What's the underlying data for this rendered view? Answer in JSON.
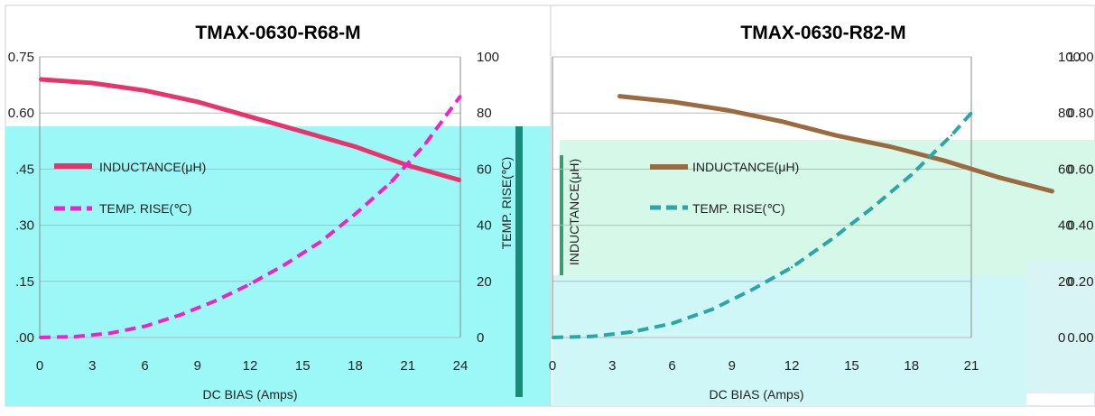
{
  "chart_data": [
    {
      "type": "line",
      "title": "TMAX-0630-R68-M",
      "xlabel": "DC BIAS  (Amps)",
      "ylabel": "INDUCTANCE(μH)",
      "ylabel_right": "TEMP. RISE(℃)",
      "x_ticks": [
        "0",
        "3",
        "6",
        "9",
        "12",
        "15",
        "18",
        "21",
        "24"
      ],
      "y_ticks": [
        ".00",
        ".15",
        ".30",
        ".45",
        "0.60",
        "0.75"
      ],
      "y2_ticks": [
        "0",
        "20",
        "40",
        "60",
        "80",
        "100"
      ],
      "xlim": [
        0,
        24
      ],
      "ylim": [
        0,
        0.75
      ],
      "y2lim": [
        0,
        100
      ],
      "legend": [
        "INDUCTANCE(μH)",
        "TEMP. RISE(℃)"
      ],
      "series": [
        {
          "name": "INDUCTANCE(μH)",
          "axis": "left",
          "color": "#c0504d",
          "x": [
            0,
            3,
            6,
            9,
            12,
            15,
            18,
            21,
            24
          ],
          "values": [
            0.69,
            0.68,
            0.66,
            0.63,
            0.59,
            0.55,
            0.51,
            0.46,
            0.42
          ]
        },
        {
          "name": "TEMP. RISE(℃)",
          "axis": "right",
          "color": "#4f81bd",
          "x": [
            0,
            2,
            4,
            6,
            8,
            10,
            12,
            14,
            16,
            18,
            20,
            22,
            24
          ],
          "values": [
            0,
            0.3,
            1.5,
            4,
            8,
            13,
            19,
            26,
            34,
            44,
            55,
            69,
            86
          ]
        }
      ]
    },
    {
      "type": "line",
      "title": "TMAX-0630-R82-M",
      "xlabel": "DC BIAS  (Amps)",
      "ylabel": "INDUCTANCE(μH)",
      "ylabel_right": "TEMP. RISE(℃)",
      "x_ticks": [
        "0",
        "3",
        "6",
        "9",
        "12",
        "15",
        "18",
        "21"
      ],
      "y_ticks": [
        "0.00",
        "0.20",
        "0.40",
        "0.60",
        "0.80",
        "1.00"
      ],
      "y2_ticks": [
        "0",
        "20",
        "40",
        "60",
        "80",
        "100"
      ],
      "xlim": [
        0,
        21
      ],
      "ylim": [
        0,
        1.0
      ],
      "y2lim": [
        0,
        100
      ],
      "legend": [
        "INDUCTANCE(μH)",
        "TEMP. RISE(℃)"
      ],
      "series": [
        {
          "name": "INDUCTANCE(μH)",
          "axis": "left",
          "color": "#c0504d",
          "x": [
            0,
            3,
            6,
            9,
            12,
            15,
            18,
            21,
            24
          ],
          "values": [
            0.86,
            0.84,
            0.81,
            0.77,
            0.72,
            0.68,
            0.63,
            0.57,
            0.52
          ]
        },
        {
          "name": "TEMP. RISE(℃)",
          "axis": "right",
          "color": "#4f81bd",
          "x": [
            0,
            2,
            4,
            6,
            8,
            10,
            12,
            14,
            16,
            18,
            20,
            21
          ],
          "values": [
            0,
            0.4,
            2,
            5,
            10,
            17,
            25,
            35,
            46,
            58,
            72,
            80
          ]
        }
      ]
    }
  ]
}
